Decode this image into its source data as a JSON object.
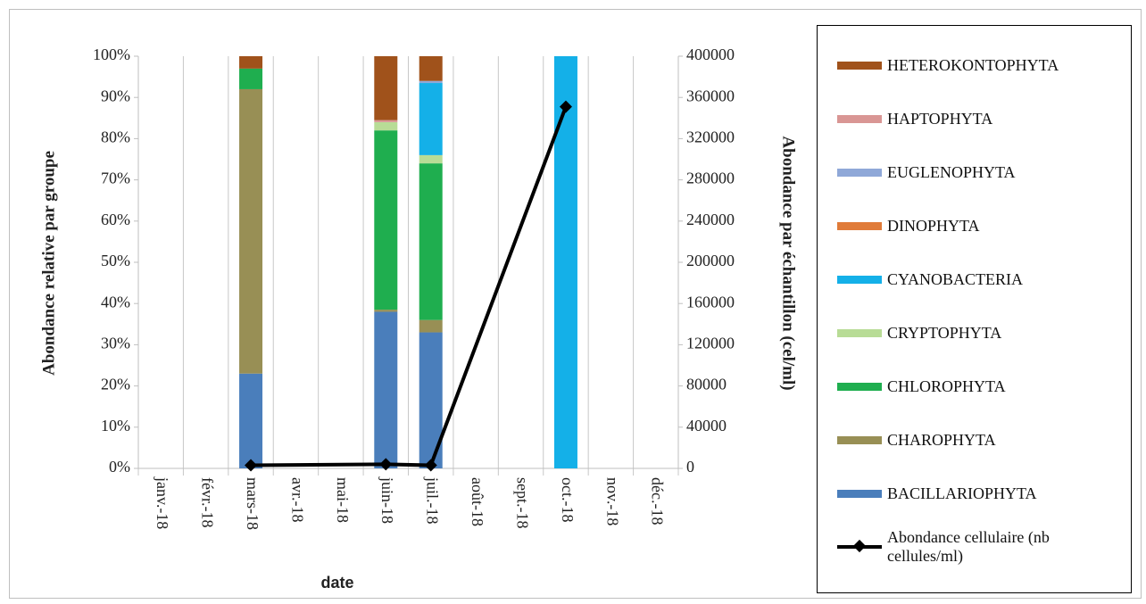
{
  "chart_data": {
    "type": "stacked-bar-line",
    "x_label": "date",
    "y_label": "Abondance relative par groupe",
    "y2_label": "Abondance par échantillon (cel/ml)",
    "categories": [
      "janv.-18",
      "févr.-18",
      "mars-18",
      "avr.-18",
      "mai-18",
      "juin-18",
      "juil.-18",
      "août-18",
      "sept.-18",
      "oct.-18",
      "nov.-18",
      "déc.-18"
    ],
    "ylim": [
      0,
      100
    ],
    "yticks": [
      {
        "value": 0,
        "label": "0%"
      },
      {
        "value": 10,
        "label": "10%"
      },
      {
        "value": 20,
        "label": "20%"
      },
      {
        "value": 30,
        "label": "30%"
      },
      {
        "value": 40,
        "label": "40%"
      },
      {
        "value": 50,
        "label": "50%"
      },
      {
        "value": 60,
        "label": "60%"
      },
      {
        "value": 70,
        "label": "70%"
      },
      {
        "value": 80,
        "label": "80%"
      },
      {
        "value": 90,
        "label": "90%"
      },
      {
        "value": 100,
        "label": "100%"
      }
    ],
    "y2lim": [
      0,
      400000
    ],
    "y2ticks": [
      0,
      40000,
      80000,
      120000,
      160000,
      200000,
      240000,
      280000,
      320000,
      360000,
      400000
    ],
    "series": [
      {
        "name": "BACILLARIOPHYTA",
        "color": "#4a7ebb",
        "values": [
          null,
          null,
          23,
          null,
          null,
          38,
          33,
          null,
          null,
          0,
          null,
          null
        ]
      },
      {
        "name": "CHAROPHYTA",
        "color": "#988f55",
        "values": [
          null,
          null,
          69,
          null,
          null,
          0.5,
          3,
          null,
          null,
          0,
          null,
          null
        ]
      },
      {
        "name": "CHLOROPHYTA",
        "color": "#1fae4f",
        "values": [
          null,
          null,
          5,
          null,
          null,
          43.5,
          38,
          null,
          null,
          0,
          null,
          null
        ]
      },
      {
        "name": "CRYPTOPHYTA",
        "color": "#b8dc96",
        "values": [
          null,
          null,
          0,
          null,
          null,
          2,
          2,
          null,
          null,
          0,
          null,
          null
        ]
      },
      {
        "name": "CYANOBACTERIA",
        "color": "#14b0e8",
        "values": [
          null,
          null,
          0,
          null,
          null,
          0,
          17.5,
          null,
          null,
          100,
          null,
          null
        ]
      },
      {
        "name": "DINOPHYTA",
        "color": "#e07b39",
        "values": [
          null,
          null,
          0,
          null,
          null,
          0,
          0,
          null,
          null,
          0,
          null,
          null
        ]
      },
      {
        "name": "EUGLENOPHYTA",
        "color": "#8fa8d8",
        "values": [
          null,
          null,
          0,
          null,
          null,
          0,
          0.5,
          null,
          null,
          0,
          null,
          null
        ]
      },
      {
        "name": "HAPTOPHYTA",
        "color": "#d99694",
        "values": [
          null,
          null,
          0,
          null,
          null,
          0.5,
          0,
          null,
          null,
          0,
          null,
          null
        ]
      },
      {
        "name": "HETEROKONTOPHYTA",
        "color": "#a0521b",
        "values": [
          null,
          null,
          3,
          null,
          null,
          15.5,
          6,
          null,
          null,
          0,
          null,
          null
        ]
      },
      {
        "name": "Abondance cellulaire (nb cellules/ml)",
        "color": "#000000",
        "axis": "y2",
        "kind": "line",
        "values": [
          null,
          null,
          3000,
          null,
          null,
          4000,
          3000,
          null,
          null,
          351000,
          null,
          null
        ]
      }
    ]
  }
}
